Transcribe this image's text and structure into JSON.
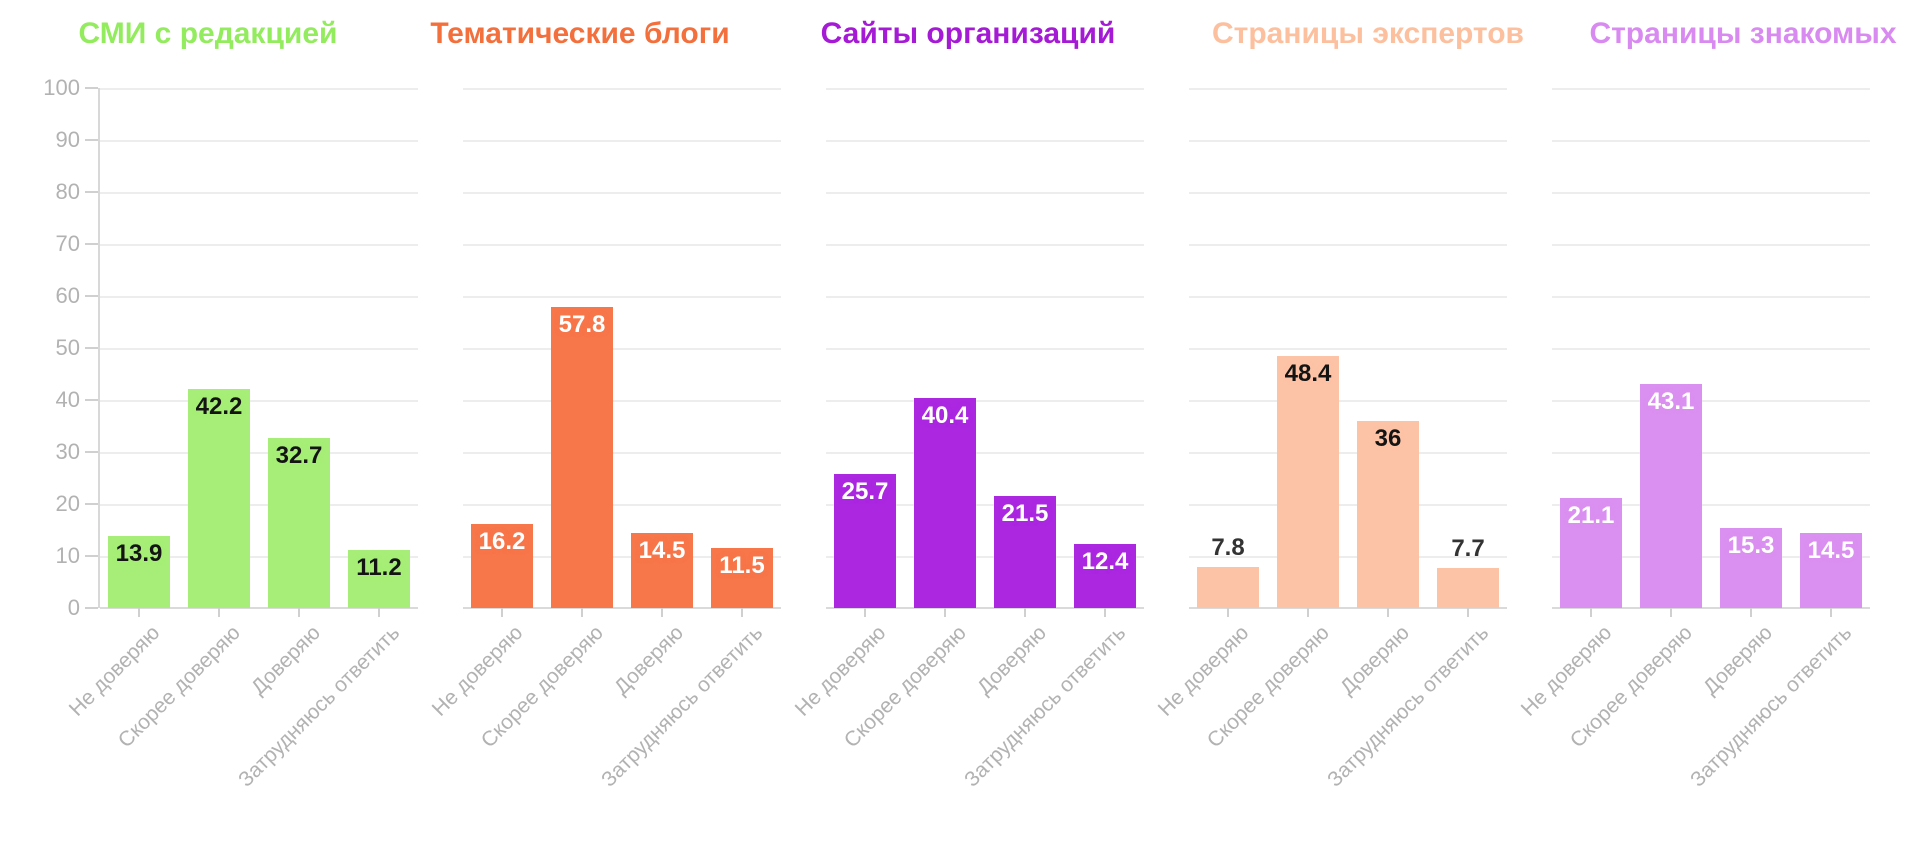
{
  "chart_data": {
    "type": "bar",
    "layout": "small-multiples",
    "title": "",
    "categories": [
      "Не доверяю",
      "Скорее доверяю",
      "Доверяю",
      "Затрудняюсь ответить"
    ],
    "y_axis": {
      "min": 0,
      "max": 100,
      "tick_step": 10,
      "tick_labels": [
        "0",
        "10",
        "20",
        "30",
        "40",
        "50",
        "60",
        "70",
        "80",
        "90",
        "100"
      ]
    },
    "grid": true,
    "legend": false,
    "panels": [
      {
        "title": "СМИ с редакцией",
        "title_color": "#93eb5e",
        "bar_color": "#a6ee77",
        "value_label_color": "#141414",
        "values": [
          13.9,
          42.2,
          32.7,
          11.2
        ]
      },
      {
        "title": "Тематические блоги",
        "title_color": "#f3703d",
        "bar_color": "#f7764a",
        "value_label_color": "#ffffff",
        "values": [
          16.2,
          57.8,
          14.5,
          11.5
        ]
      },
      {
        "title": "Сайты организаций",
        "title_color": "#a51ad5",
        "bar_color": "#ab28e0",
        "value_label_color": "#ffffff",
        "values": [
          25.7,
          40.4,
          21.5,
          12.4
        ]
      },
      {
        "title": "Страницы экспертов",
        "title_color": "#fcc09e",
        "bar_color": "#fdc3a6",
        "value_label_color": "#141414",
        "values": [
          7.8,
          48.4,
          36,
          7.7
        ]
      },
      {
        "title": "Страницы знакомых",
        "title_color": "#d88af0",
        "bar_color": "#da90f0",
        "value_label_color": "#ffffff",
        "values": [
          21.1,
          43.1,
          15.3,
          14.5
        ]
      }
    ],
    "style_colors": {
      "axis_text": "#b2b2b2",
      "grid_line": "#ededed",
      "axis_line": "#d8d8d8",
      "above_bar_label": "#333333"
    }
  }
}
